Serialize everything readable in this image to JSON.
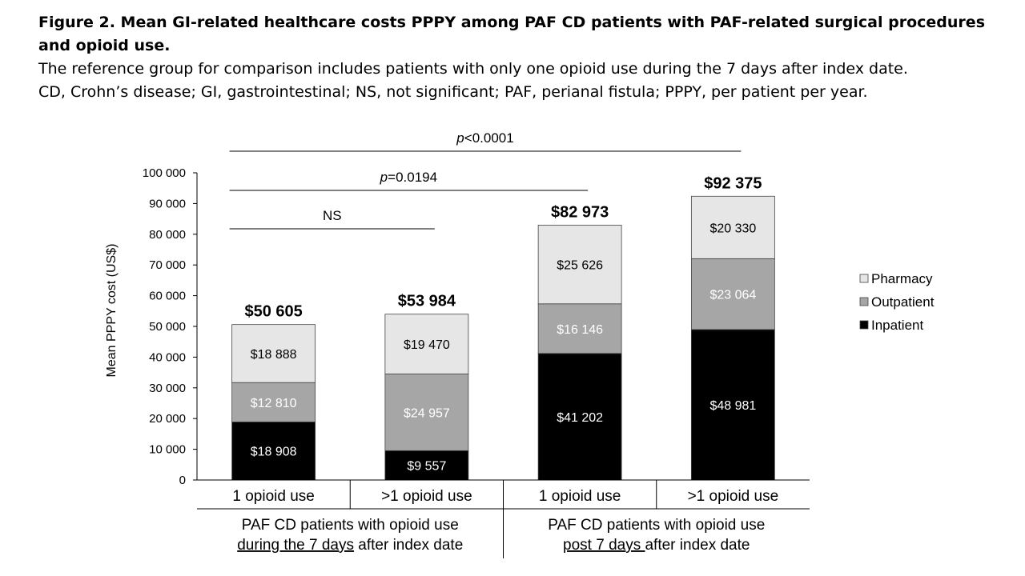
{
  "caption": {
    "title": "Figure 2. Mean GI-related healthcare costs PPPY among PAF CD patients with PAF-related surgical procedures and opioid use.",
    "line1": "The reference group for comparison includes patients with only one opioid use during the 7 days after index date.",
    "line2": "CD, Crohn’s disease; GI, gastrointestinal; NS, not significant; PAF, perianal fistula; PPPY, per patient per year."
  },
  "chart_data": {
    "type": "bar",
    "stacked": true,
    "ylabel": "Mean PPPY cost (US$)",
    "ylim": [
      0,
      100000
    ],
    "yticks": [
      0,
      10000,
      20000,
      30000,
      40000,
      50000,
      60000,
      70000,
      80000,
      90000,
      100000
    ],
    "ytick_labels": [
      "0",
      "10 000",
      "20 000",
      "30 000",
      "40 000",
      "50 000",
      "60 000",
      "70 000",
      "80 000",
      "90 000",
      "100 000"
    ],
    "categories": [
      "1 opioid use",
      ">1 opioid use",
      "1 opioid use",
      ">1 opioid use"
    ],
    "groups": [
      {
        "line1": "PAF CD patients with opioid use",
        "underlined": "during the 7 days",
        "rest": " after index date"
      },
      {
        "line1": "PAF CD patients with opioid use",
        "underlined": "post 7 days ",
        "rest": "after index date"
      }
    ],
    "series": [
      {
        "name": "Inpatient",
        "color": "#000000",
        "label_color": "#ffffff",
        "values": [
          18908,
          9557,
          41202,
          48981
        ],
        "labels": [
          "$18 908",
          "$9 557",
          "$41 202",
          "$48 981"
        ]
      },
      {
        "name": "Outpatient",
        "color": "#a6a6a6",
        "label_color": "#ffffff",
        "values": [
          12810,
          24957,
          16146,
          23064
        ],
        "labels": [
          "$12 810",
          "$24 957",
          "$16 146",
          "$23 064"
        ]
      },
      {
        "name": "Pharmacy",
        "color": "#e7e6e6",
        "label_color": "#000000",
        "values": [
          18888,
          19470,
          25626,
          20330
        ],
        "labels": [
          "$18 888",
          "$19 470",
          "$25 626",
          "$20 330"
        ]
      }
    ],
    "totals": [
      50605,
      53984,
      82973,
      92375
    ],
    "total_labels": [
      "$50 605",
      "$53 984",
      "$82 973",
      "$92 375"
    ],
    "legend": {
      "position": "right",
      "order": [
        "Pharmacy",
        "Outpatient",
        "Inpatient"
      ]
    },
    "annotations": [
      {
        "prefix": "",
        "text": "NS",
        "from_bar": 0,
        "to_bar": 1
      },
      {
        "prefix": "p",
        "text": "=0.0194",
        "from_bar": 0,
        "to_bar": 2
      },
      {
        "prefix": "p",
        "text": "<0.0001",
        "from_bar": 0,
        "to_bar": 3
      }
    ],
    "grid": false
  }
}
